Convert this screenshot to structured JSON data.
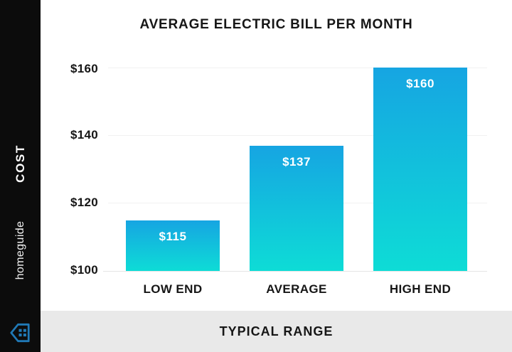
{
  "colors": {
    "bar_gradient_top": "#16A5E2",
    "bar_gradient_bottom": "#0EDCD6",
    "sidebar_bg": "#0C0C0C",
    "footer_bg": "#E9E9E9",
    "text_dark": "#161616",
    "gridline": "#F1F1F1",
    "bar_value_text": "#FFFFFF",
    "logo_blue": "#2079B6"
  },
  "sidebar": {
    "vertical_label": "COST",
    "brand": "homeguide",
    "logo_icon": "house-icon"
  },
  "footer": {
    "label": "TYPICAL RANGE"
  },
  "chart_data": {
    "type": "bar",
    "title": "AVERAGE ELECTRIC BILL PER MONTH",
    "categories": [
      "LOW END",
      "AVERAGE",
      "HIGH END"
    ],
    "values": [
      115,
      137,
      160
    ],
    "value_labels": [
      "$115",
      "$137",
      "$160"
    ],
    "value_label_position": "inside-top",
    "y_ticks": [
      "$160",
      "$140",
      "$120",
      "$100"
    ],
    "y_tick_values": [
      160,
      140,
      120,
      100
    ],
    "ylim": [
      100,
      160
    ],
    "xlabel": "TYPICAL RANGE",
    "ylabel": "COST",
    "grid": true,
    "legend": false
  }
}
